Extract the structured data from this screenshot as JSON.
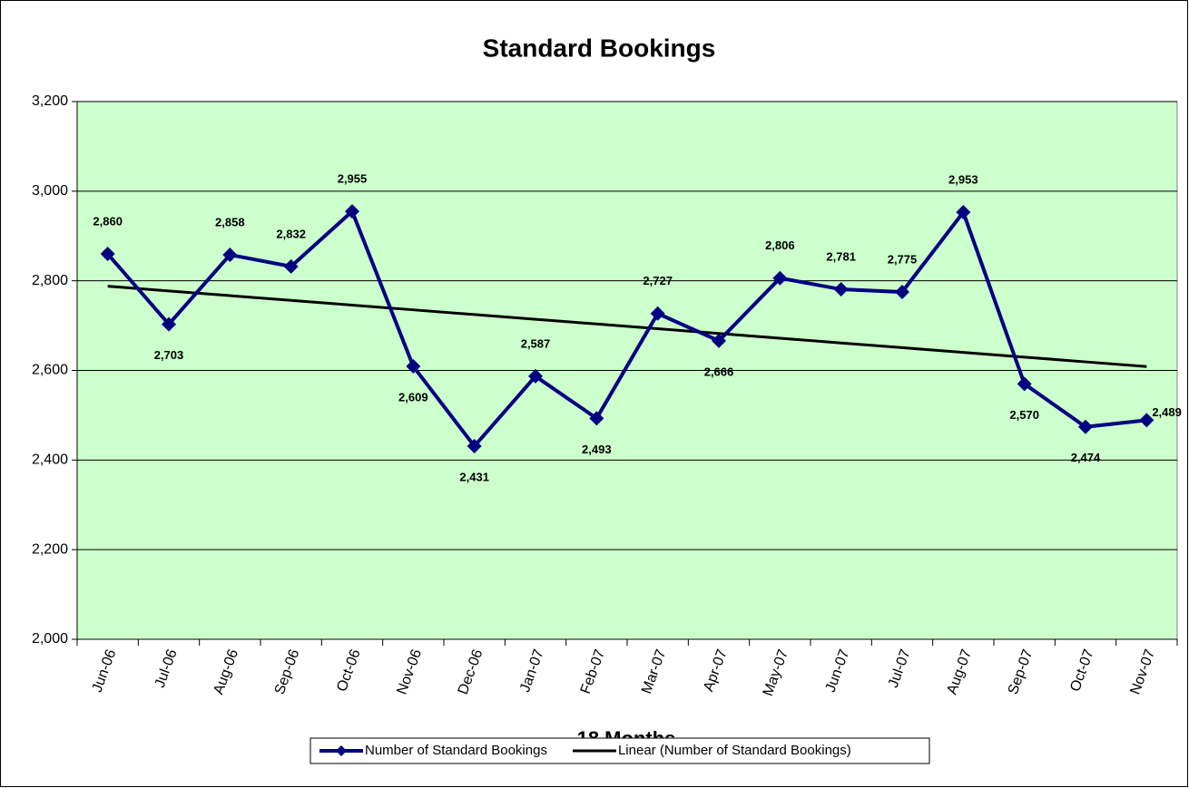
{
  "chart_data": {
    "type": "line",
    "title": "Standard Bookings",
    "x_label": "18 Months",
    "categories": [
      "Jun-06",
      "Jul-06",
      "Aug-06",
      "Sep-06",
      "Oct-06",
      "Nov-06",
      "Dec-06",
      "Jan-07",
      "Feb-07",
      "Mar-07",
      "Apr-07",
      "May-07",
      "Jun-07",
      "Jul-07",
      "Aug-07",
      "Sep-07",
      "Oct-07",
      "Nov-07"
    ],
    "series": [
      {
        "name": "Number of Standard Bookings",
        "color": "#000080",
        "values": [
          2860,
          2703,
          2858,
          2832,
          2955,
          2609,
          2431,
          2587,
          2493,
          2727,
          2666,
          2806,
          2781,
          2775,
          2953,
          2570,
          2474,
          2489
        ],
        "value_labels": [
          "2,860",
          "2,703",
          "2,858",
          "2,832",
          "2,955",
          "2,609",
          "2,431",
          "2,587",
          "2,493",
          "2,727",
          "2,666",
          "2,806",
          "2,781",
          "2,775",
          "2,953",
          "2,570",
          "2,474",
          "2,489"
        ],
        "marker": "diamond"
      },
      {
        "name": "Linear (Number of Standard Bookings)",
        "color": "#000000",
        "values": [
          2788.0,
          2777.4,
          2766.9,
          2756.3,
          2745.8,
          2735.2,
          2724.7,
          2714.1,
          2703.6,
          2693.0,
          2682.5,
          2671.9,
          2661.3,
          2650.8,
          2640.2,
          2629.7,
          2619.1,
          2608.6
        ]
      }
    ],
    "ylim": [
      2000,
      3200
    ],
    "yticks": [
      {
        "value": 2000,
        "label": "2,000"
      },
      {
        "value": 2200,
        "label": "2,200"
      },
      {
        "value": 2400,
        "label": "2,400"
      },
      {
        "value": 2600,
        "label": "2,600"
      },
      {
        "value": 2800,
        "label": "2,800"
      },
      {
        "value": 3000,
        "label": "3,000"
      },
      {
        "value": 3200,
        "label": "3,200"
      }
    ],
    "grid": true,
    "plot_background": "#ccffcc",
    "legend": "bottom"
  }
}
